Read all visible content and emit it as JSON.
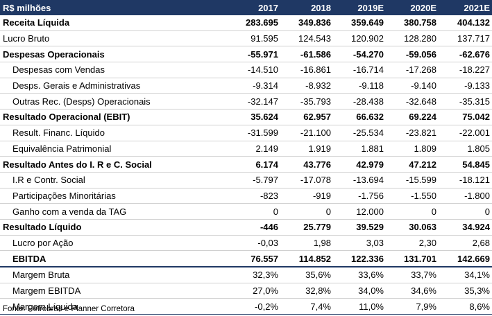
{
  "header": [
    "R$ milhões",
    "2017",
    "2018",
    "2019E",
    "2020E",
    "2021E"
  ],
  "rows": [
    {
      "label": "Receita Líquida",
      "values": [
        "283.695",
        "349.836",
        "359.649",
        "380.758",
        "404.132"
      ],
      "bold": true,
      "indent": false
    },
    {
      "label": "Lucro Bruto",
      "values": [
        "91.595",
        "124.543",
        "120.902",
        "128.280",
        "137.717"
      ],
      "bold": false,
      "indent": false
    },
    {
      "label": "Despesas Operacionais",
      "values": [
        "-55.971",
        "-61.586",
        "-54.270",
        "-59.056",
        "-62.676"
      ],
      "bold": true,
      "indent": false
    },
    {
      "label": "Despesas com Vendas",
      "values": [
        "-14.510",
        "-16.861",
        "-16.714",
        "-17.268",
        "-18.227"
      ],
      "bold": false,
      "indent": true
    },
    {
      "label": "Desps. Gerais e Administrativas",
      "values": [
        "-9.314",
        "-8.932",
        "-9.118",
        "-9.140",
        "-9.133"
      ],
      "bold": false,
      "indent": true
    },
    {
      "label": "Outras Rec. (Desps) Operacionais",
      "values": [
        "-32.147",
        "-35.793",
        "-28.438",
        "-32.648",
        "-35.315"
      ],
      "bold": false,
      "indent": true
    },
    {
      "label": "Resultado Operacional (EBIT)",
      "values": [
        "35.624",
        "62.957",
        "66.632",
        "69.224",
        "75.042"
      ],
      "bold": true,
      "indent": false
    },
    {
      "label": "Result. Financ. Líquido",
      "values": [
        "-31.599",
        "-21.100",
        "-25.534",
        "-23.821",
        "-22.001"
      ],
      "bold": false,
      "indent": true
    },
    {
      "label": "Equivalência Patrimonial",
      "values": [
        "2.149",
        "1.919",
        "1.881",
        "1.809",
        "1.805"
      ],
      "bold": false,
      "indent": true
    },
    {
      "label": "Resultado Antes do I. R e C. Social",
      "values": [
        "6.174",
        "43.776",
        "42.979",
        "47.212",
        "54.845"
      ],
      "bold": true,
      "indent": false
    },
    {
      "label": "I.R e Contr. Social",
      "values": [
        "-5.797",
        "-17.078",
        "-13.694",
        "-15.599",
        "-18.121"
      ],
      "bold": false,
      "indent": true
    },
    {
      "label": "Participações Minoritárias",
      "values": [
        "-823",
        "-919",
        "-1.756",
        "-1.550",
        "-1.800"
      ],
      "bold": false,
      "indent": true
    },
    {
      "label": "Ganho com a venda da TAG",
      "values": [
        "0",
        "0",
        "12.000",
        "0",
        "0"
      ],
      "bold": false,
      "indent": true
    },
    {
      "label": "Resultado Líquido",
      "values": [
        "-446",
        "25.779",
        "39.529",
        "30.063",
        "34.924"
      ],
      "bold": true,
      "indent": false
    },
    {
      "label": "Lucro por Ação",
      "values": [
        "-0,03",
        "1,98",
        "3,03",
        "2,30",
        "2,68"
      ],
      "bold": false,
      "indent": true
    },
    {
      "label": "EBITDA",
      "values": [
        "76.557",
        "114.852",
        "122.336",
        "131.701",
        "142.669"
      ],
      "bold": true,
      "indent": true,
      "thick": true
    },
    {
      "label": "Margem Bruta",
      "values": [
        "32,3%",
        "35,6%",
        "33,6%",
        "33,7%",
        "34,1%"
      ],
      "bold": false,
      "indent": true
    },
    {
      "label": "Margem EBITDA",
      "values": [
        "27,0%",
        "32,8%",
        "34,0%",
        "34,6%",
        "35,3%"
      ],
      "bold": false,
      "indent": true
    },
    {
      "label": "Margem Líquida",
      "values": [
        "-0,2%",
        "7,4%",
        "11,0%",
        "7,9%",
        "8,6%"
      ],
      "bold": false,
      "indent": true,
      "last": true
    }
  ],
  "source": "Fonte: Petrobras e Planner Corretora"
}
